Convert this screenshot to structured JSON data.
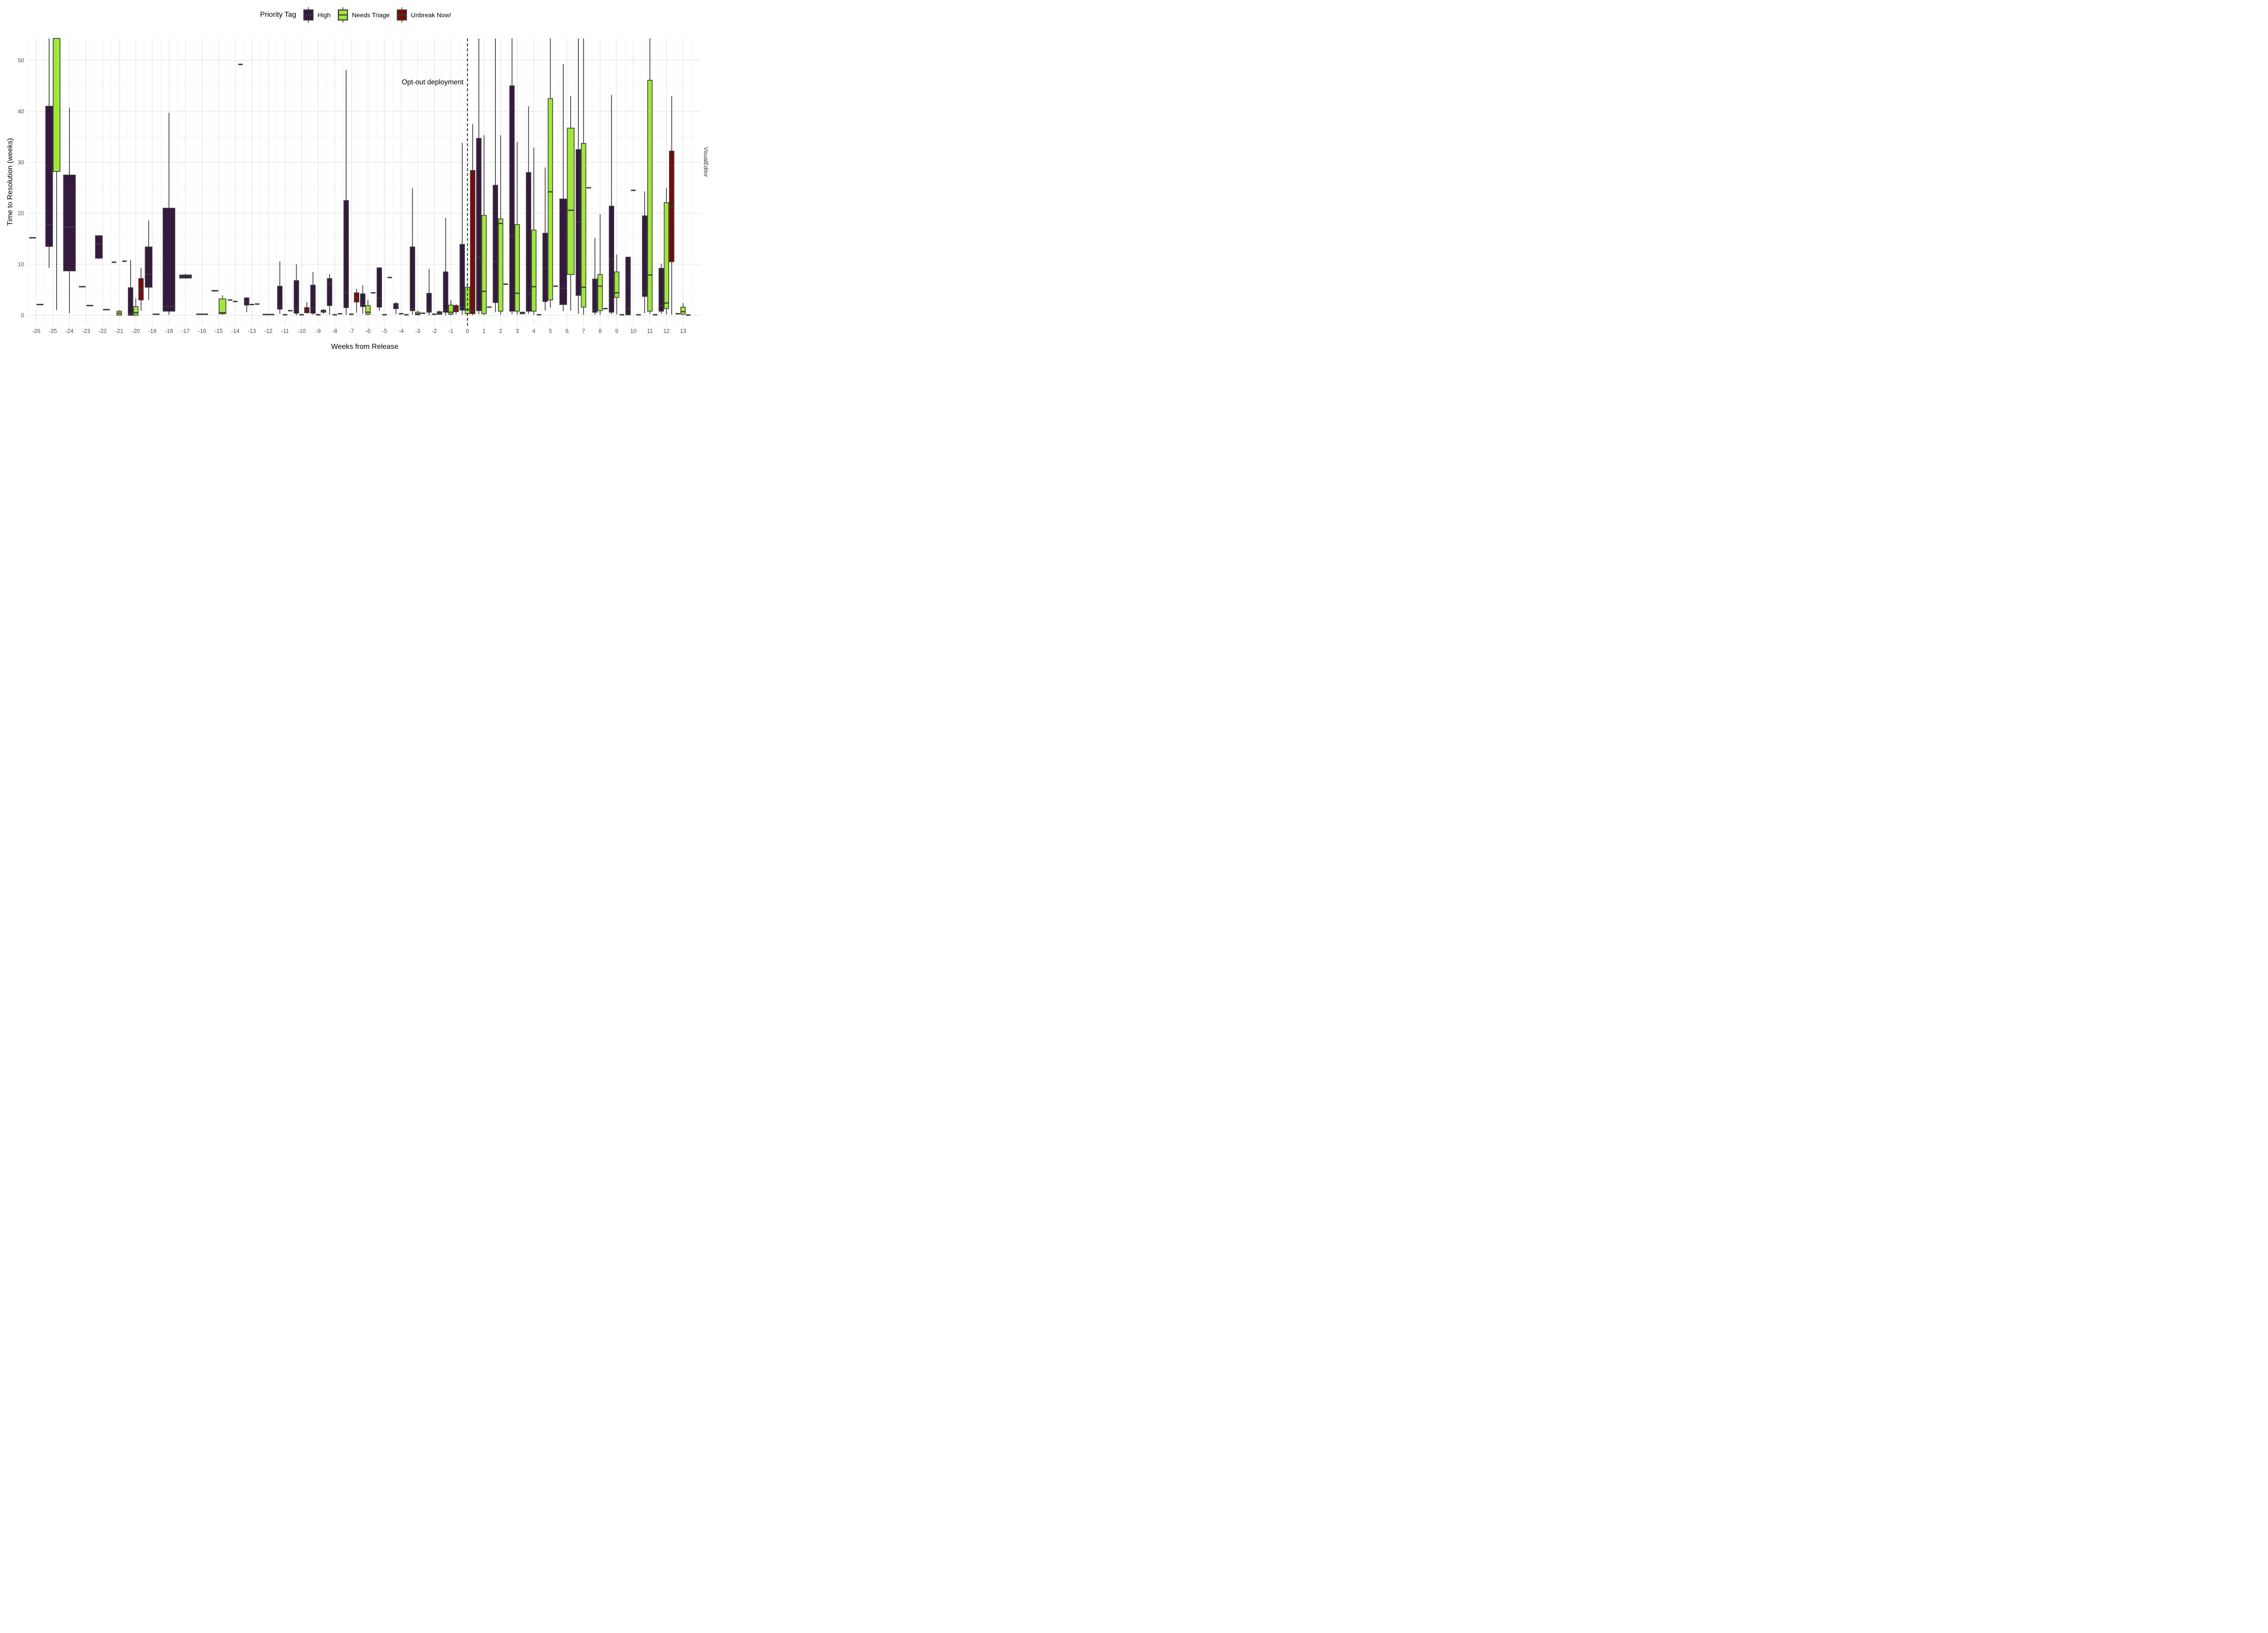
{
  "legend": {
    "title": "Priority Tag",
    "items": [
      {
        "key": "h",
        "label": "High",
        "color": "#35193F"
      },
      {
        "key": "nt",
        "label": "Needs Triage",
        "color": "#9FE838"
      },
      {
        "key": "un",
        "label": "Unbreak Now!",
        "color": "#7A0B0B"
      }
    ]
  },
  "axes": {
    "x_title": "Weeks from Release",
    "y_title": "Time to Resolution (weeks)",
    "y_ticks": [
      0,
      10,
      20,
      30,
      40,
      50
    ]
  },
  "annotation": {
    "text": "Opt-out deployment",
    "week": -2.1,
    "value": 45.5
  },
  "right_label": "VisualEditor",
  "reference_line": {
    "week": 0,
    "style": "dashed",
    "color": "#000000"
  },
  "style": {
    "box_border": "#3A3A3A",
    "grid_major": "#E7E7E7",
    "grid_minor": "#F3F3F3",
    "tick_text": "#4D4D4D"
  },
  "chart_data": {
    "type": "boxplot",
    "title": "",
    "xlabel": "Weeks from Release",
    "ylabel": "Time to Resolution (weeks)",
    "x_range": [
      -26,
      13
    ],
    "ylim": [
      0,
      54
    ],
    "legend_position": "top",
    "grid": true,
    "series_labels": {
      "h": "High",
      "nt": "Needs Triage",
      "un": "Unbreak Now!"
    },
    "note": "values are weeks to resolution; hi/med/q3 of 56 indicates whisker or box clipped at top of panel",
    "weeks": [
      {
        "week": -26,
        "h": {
          "single": 15.2
        },
        "nt": {
          "single": 2.1
        }
      },
      {
        "week": -25,
        "h": {
          "lo": 9.3,
          "q1": 13.5,
          "med": 17.8,
          "q3": 41.0,
          "hi": 56
        },
        "nt": {
          "lo": 1.0,
          "q1": 28.2,
          "med": 56,
          "q3": 56,
          "hi": 56
        }
      },
      {
        "week": -24,
        "h": {
          "lo": 0.4,
          "q1": 8.7,
          "med": 17.3,
          "q3": 27.5,
          "hi": 40.7
        }
      },
      {
        "week": -23,
        "h": {
          "single": 5.6
        },
        "nt": {
          "single": 1.9
        }
      },
      {
        "week": -22,
        "h": {
          "lo": 11.0,
          "q1": 11.2,
          "med": 14.0,
          "q3": 15.6,
          "hi": 15.6
        },
        "nt": {
          "single": 1.1
        }
      },
      {
        "week": -21,
        "h": {
          "single": 10.4
        },
        "nt": {
          "lo": 0,
          "q1": 0,
          "med": 0.4,
          "q3": 0.8,
          "hi": 1.0
        },
        "un": {
          "single": 10.6
        }
      },
      {
        "week": -20,
        "h": {
          "lo": 0,
          "q1": 0,
          "med": 0.3,
          "q3": 5.4,
          "hi": 10.8
        },
        "nt": {
          "lo": 0,
          "q1": 0,
          "med": 0.5,
          "q3": 1.7,
          "hi": 3.3
        },
        "un": {
          "lo": 0.9,
          "q1": 3.0,
          "med": 5.1,
          "q3": 7.2,
          "hi": 9.3
        }
      },
      {
        "week": -19,
        "h": {
          "lo": 3.0,
          "q1": 5.5,
          "med": 8.0,
          "q3": 13.4,
          "hi": 18.6
        },
        "nt": {
          "single": 0.2
        }
      },
      {
        "week": -18,
        "h": {
          "lo": 0.1,
          "q1": 0.8,
          "med": 1.7,
          "q3": 21.0,
          "hi": 39.7
        }
      },
      {
        "week": -17,
        "h": {
          "lo": 7.2,
          "q1": 7.3,
          "med": 7.6,
          "q3": 7.9,
          "hi": 8.1
        }
      },
      {
        "week": -16,
        "h": {
          "single": 0.2
        }
      },
      {
        "week": -15,
        "h": {
          "single": 4.8
        },
        "nt": {
          "lo": 0.1,
          "q1": 0.3,
          "med": 0.5,
          "q3": 3.2,
          "hi": 3.9
        }
      },
      {
        "week": -14,
        "h": {
          "single": 3.0
        },
        "nt": {
          "single": 2.7
        },
        "un": {
          "single": 49.2
        }
      },
      {
        "week": -13,
        "h": {
          "lo": 0.6,
          "q1": 2.0,
          "med": 2.7,
          "q3": 3.4,
          "hi": 3.5
        },
        "nt": {
          "single": 2.1
        },
        "un": {
          "single": 2.2
        }
      },
      {
        "week": -12,
        "h": {
          "single": 0.15
        }
      },
      {
        "week": -11,
        "h": {
          "lo": 0.3,
          "q1": 1.2,
          "med": 1.8,
          "q3": 5.7,
          "hi": 10.6
        },
        "nt": {
          "single": 0.1
        },
        "un": {
          "single": 0.9
        }
      },
      {
        "week": -10,
        "h": {
          "lo": 0,
          "q1": 0.4,
          "med": 1.3,
          "q3": 6.8,
          "hi": 10.0
        },
        "nt": {
          "single": 0.1
        },
        "un": {
          "lo": 0.3,
          "q1": 0.5,
          "med": 1.0,
          "q3": 1.5,
          "hi": 2.6
        }
      },
      {
        "week": -9,
        "h": {
          "lo": 0.1,
          "q1": 0.4,
          "med": 1.3,
          "q3": 5.9,
          "hi": 8.5
        },
        "nt": {
          "single": 0.1
        },
        "un": {
          "lo": 0.3,
          "q1": 0.6,
          "med": 0.8,
          "q3": 1.0,
          "hi": 1.2
        }
      },
      {
        "week": -8,
        "h": {
          "lo": 0.1,
          "q1": 1.9,
          "med": 6.0,
          "q3": 7.2,
          "hi": 8.1
        },
        "nt": {
          "single": 0.1
        },
        "un": {
          "single": 0.3
        }
      },
      {
        "week": -7,
        "h": {
          "lo": 0.1,
          "q1": 1.5,
          "med": 4.4,
          "q3": 22.5,
          "hi": 48.1
        },
        "nt": {
          "single": 0.2
        },
        "un": {
          "lo": 0.5,
          "q1": 2.6,
          "med": 3.4,
          "q3": 4.4,
          "hi": 5.2
        }
      },
      {
        "week": -6,
        "h": {
          "lo": 0.3,
          "q1": 1.7,
          "med": 2.1,
          "q3": 4.2,
          "hi": 5.9
        },
        "nt": {
          "lo": 0,
          "q1": 0.2,
          "med": 0.6,
          "q3": 1.9,
          "hi": 3.0
        },
        "un": {
          "single": 4.4
        }
      },
      {
        "week": -5,
        "h": {
          "lo": 0.9,
          "q1": 1.6,
          "med": 3.4,
          "q3": 9.3,
          "hi": 9.3
        },
        "nt": {
          "single": 0.1
        },
        "un": {
          "single": 7.4
        }
      },
      {
        "week": -4,
        "h": {
          "lo": 0.2,
          "q1": 1.3,
          "med": 1.9,
          "q3": 2.3,
          "hi": 2.6
        },
        "nt": {
          "single": 0.3
        },
        "un": {
          "single": 0.1
        }
      },
      {
        "week": -3,
        "h": {
          "lo": 0.1,
          "q1": 0.9,
          "med": 1.3,
          "q3": 13.4,
          "hi": 24.9
        },
        "nt": {
          "lo": 0,
          "q1": 0.1,
          "med": 0.3,
          "q3": 0.6,
          "hi": 0.9
        },
        "un": {
          "single": 0.4
        }
      },
      {
        "week": -2,
        "h": {
          "lo": 0,
          "q1": 0.6,
          "med": 0.9,
          "q3": 4.3,
          "hi": 9.1
        },
        "nt": {
          "single": 0.2
        },
        "un": {
          "lo": 0.1,
          "q1": 0.2,
          "med": 0.5,
          "q3": 0.7,
          "hi": 0.9
        }
      },
      {
        "week": -1,
        "h": {
          "lo": 0,
          "q1": 0.6,
          "med": 1.0,
          "q3": 8.5,
          "hi": 19.1
        },
        "nt": {
          "lo": 0,
          "q1": 0.2,
          "med": 0.6,
          "q3": 2.0,
          "hi": 3.0
        },
        "un": {
          "lo": 0.2,
          "q1": 0.7,
          "med": 1.2,
          "q3": 1.9,
          "hi": 2.2
        }
      },
      {
        "week": 0,
        "h": {
          "lo": 0.1,
          "q1": 1.0,
          "med": 1.6,
          "q3": 13.9,
          "hi": 33.8
        },
        "nt": {
          "lo": 0,
          "q1": 0.3,
          "med": 1.1,
          "q3": 5.5,
          "hi": 6.3
        },
        "un": {
          "lo": 0,
          "q1": 0.3,
          "med": 0.9,
          "q3": 28.4,
          "hi": 37.5
        }
      },
      {
        "week": 1,
        "h": {
          "lo": 0.2,
          "q1": 0.9,
          "med": 11.4,
          "q3": 34.7,
          "hi": 56
        },
        "nt": {
          "lo": 0.1,
          "q1": 0.3,
          "med": 4.7,
          "q3": 19.6,
          "hi": 35.3
        },
        "un": {
          "single": 1.6
        }
      },
      {
        "week": 2,
        "h": {
          "lo": 0.6,
          "q1": 2.5,
          "med": 10.5,
          "q3": 25.5,
          "hi": 56
        },
        "nt": {
          "lo": 0.1,
          "q1": 0.8,
          "med": 18.0,
          "q3": 18.9,
          "hi": 35.3
        },
        "un": {
          "single": 6.1
        }
      },
      {
        "week": 3,
        "h": {
          "lo": 0.2,
          "q1": 0.8,
          "med": 15.6,
          "q3": 45.0,
          "hi": 56
        },
        "nt": {
          "lo": 0.1,
          "q1": 0.8,
          "med": 4.3,
          "q3": 17.8,
          "hi": 34.0
        },
        "un": {
          "lo": 0.2,
          "q1": 0.3,
          "med": 0.45,
          "q3": 0.6,
          "hi": 0.7
        }
      },
      {
        "week": 4,
        "h": {
          "lo": 0.3,
          "q1": 0.8,
          "med": 4.2,
          "q3": 28.0,
          "hi": 41.0
        },
        "nt": {
          "lo": 0.1,
          "q1": 0.8,
          "med": 5.6,
          "q3": 16.7,
          "hi": 32.9
        },
        "un": {
          "single": 0.1
        }
      },
      {
        "week": 5,
        "h": {
          "lo": 0.9,
          "q1": 2.7,
          "med": 9.3,
          "q3": 16.1,
          "hi": 29.0
        },
        "nt": {
          "lo": 1.5,
          "q1": 3.0,
          "med": 24.2,
          "q3": 42.5,
          "hi": 56
        },
        "un": {
          "single": 5.7
        }
      },
      {
        "week": 6,
        "h": {
          "lo": 0.8,
          "q1": 2.1,
          "med": 5.3,
          "q3": 22.8,
          "hi": 49.3
        },
        "nt": {
          "lo": 0.9,
          "q1": 8.0,
          "med": 20.6,
          "q3": 36.7,
          "hi": 43.0
        }
      },
      {
        "week": 7,
        "h": {
          "lo": 0.3,
          "q1": 3.9,
          "med": 18.3,
          "q3": 32.5,
          "hi": 56
        },
        "nt": {
          "lo": 0.1,
          "q1": 1.6,
          "med": 5.5,
          "q3": 33.7,
          "hi": 56
        },
        "un": {
          "single": 25.0
        }
      },
      {
        "week": 8,
        "h": {
          "lo": 0.1,
          "q1": 0.6,
          "med": 1.0,
          "q3": 7.1,
          "hi": 15.2
        },
        "nt": {
          "lo": 0.1,
          "q1": 0.9,
          "med": 5.7,
          "q3": 8.0,
          "hi": 19.8
        },
        "un": {
          "single": 1.3
        }
      },
      {
        "week": 9,
        "h": {
          "lo": 0.2,
          "q1": 0.6,
          "med": 11.0,
          "q3": 21.4,
          "hi": 43.2
        },
        "nt": {
          "lo": 0.2,
          "q1": 3.5,
          "med": 4.4,
          "q3": 8.5,
          "hi": 11.9
        },
        "un": {
          "single": 0.1
        }
      },
      {
        "week": 10,
        "h": {
          "lo": 0,
          "q1": 0.1,
          "med": 1.3,
          "q3": 11.4,
          "hi": 11.4
        },
        "nt": {
          "single": 24.5
        },
        "un": {
          "single": 0.1
        }
      },
      {
        "week": 11,
        "h": {
          "lo": 0.4,
          "q1": 3.7,
          "med": 4.6,
          "q3": 19.5,
          "hi": 24.3
        },
        "nt": {
          "lo": 0.3,
          "q1": 0.8,
          "med": 7.9,
          "q3": 46.1,
          "hi": 56
        },
        "un": {
          "single": 0.1
        }
      },
      {
        "week": 12,
        "h": {
          "lo": 0.3,
          "q1": 0.8,
          "med": 1.9,
          "q3": 9.2,
          "hi": 10.1
        },
        "nt": {
          "lo": 0.2,
          "q1": 1.3,
          "med": 2.4,
          "q3": 22.1,
          "hi": 25.0
        },
        "un": {
          "lo": 0.1,
          "q1": 10.5,
          "med": 21.4,
          "q3": 32.2,
          "hi": 43.0
        }
      },
      {
        "week": 13,
        "h": {
          "single": 0.3
        },
        "nt": {
          "lo": 0.1,
          "q1": 0.2,
          "med": 0.7,
          "q3": 1.6,
          "hi": 2.4
        },
        "un": {
          "single": 0.05
        }
      }
    ]
  }
}
